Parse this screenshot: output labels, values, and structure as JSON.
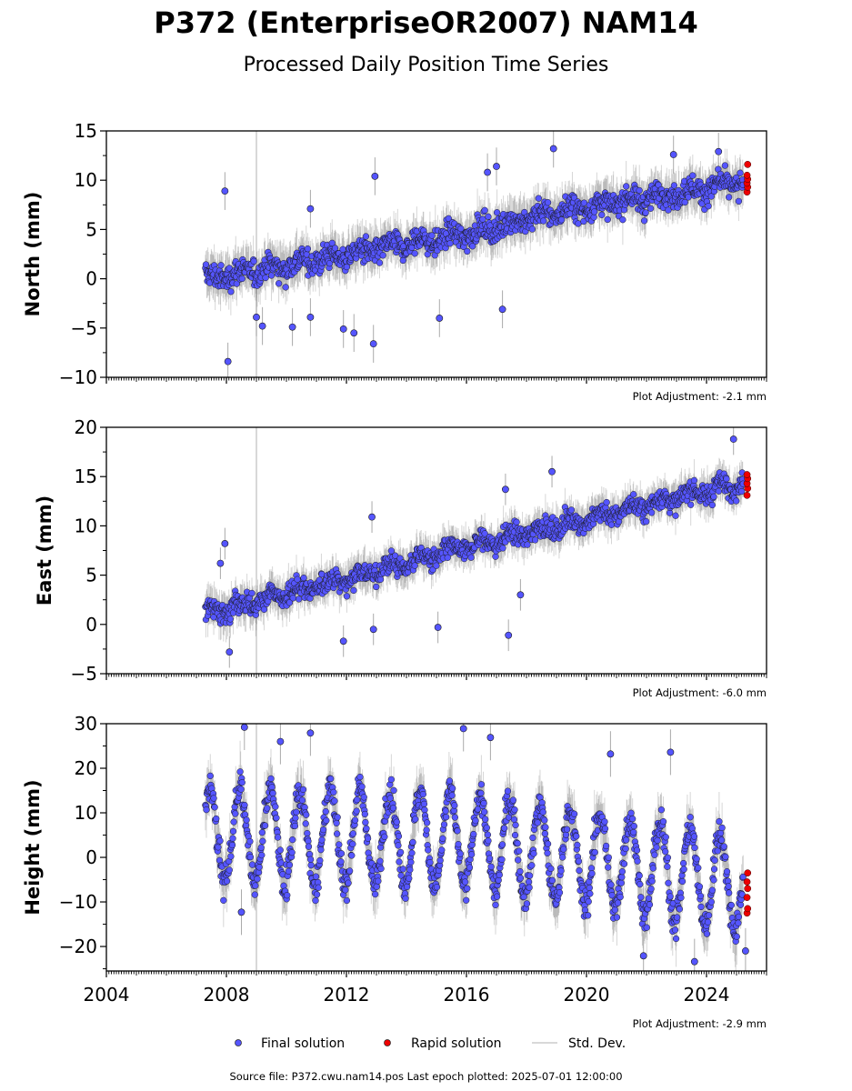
{
  "title": "P372 (EnterpriseOR2007) NAM14",
  "subtitle": "Processed Daily Position Time Series",
  "legend": {
    "final": "Final solution",
    "rapid": "Rapid solution",
    "stddev": "Std. Dev."
  },
  "source": "Source file: P372.cwu.nam14.pos  Last epoch plotted: 2025-07-01 12:00:00",
  "colors": {
    "final": "#5555ff",
    "rapid": "#ee0000",
    "stddev": "#999999"
  },
  "chart_data": [
    {
      "type": "scatter",
      "ylabel": "North (mm)",
      "adjustment": "Plot Adjustment: -2.1 mm",
      "ylim": [
        -10,
        15
      ],
      "yticks": [
        -10,
        -5,
        0,
        5,
        10,
        15
      ],
      "yticklabels": [
        "−10",
        "−5",
        "0",
        "5",
        "10",
        "15"
      ],
      "xlim": [
        2004.0,
        2026.0
      ],
      "trend": {
        "x": [
          2007.3,
          2016.0,
          2018.5,
          2025.3
        ],
        "y": [
          0.0,
          4.5,
          6.5,
          9.8
        ]
      },
      "seasonal_amp": 0.4,
      "noise_sd": 1.2,
      "rapid_y": [
        8.8,
        9.3,
        9.7,
        10.1,
        10.5,
        11.6
      ],
      "outliers": [
        {
          "x": 2007.95,
          "y": 8.9
        },
        {
          "x": 2008.05,
          "y": -8.4
        },
        {
          "x": 2009.0,
          "y": -3.9
        },
        {
          "x": 2009.2,
          "y": -4.8
        },
        {
          "x": 2010.2,
          "y": -4.9
        },
        {
          "x": 2010.8,
          "y": 7.1
        },
        {
          "x": 2010.8,
          "y": -3.9
        },
        {
          "x": 2011.9,
          "y": -5.1
        },
        {
          "x": 2012.25,
          "y": -5.5
        },
        {
          "x": 2012.9,
          "y": -6.6
        },
        {
          "x": 2012.95,
          "y": 10.4
        },
        {
          "x": 2015.1,
          "y": -4.0
        },
        {
          "x": 2016.7,
          "y": 10.8
        },
        {
          "x": 2017.2,
          "y": -3.1
        },
        {
          "x": 2017.0,
          "y": 11.4
        },
        {
          "x": 2018.9,
          "y": 13.2
        },
        {
          "x": 2022.9,
          "y": 12.6
        },
        {
          "x": 2024.4,
          "y": 12.9
        }
      ]
    },
    {
      "type": "scatter",
      "ylabel": "East (mm)",
      "adjustment": "Plot Adjustment: -6.0 mm",
      "ylim": [
        -5,
        20
      ],
      "yticks": [
        -5,
        0,
        5,
        10,
        15,
        20
      ],
      "yticklabels": [
        "−5",
        "0",
        "5",
        "10",
        "15",
        "20"
      ],
      "xlim": [
        2004.0,
        2026.0
      ],
      "trend": {
        "x": [
          2007.3,
          2016.0,
          2025.3
        ],
        "y": [
          1.0,
          7.8,
          14.5
        ]
      },
      "seasonal_amp": 0.5,
      "noise_sd": 1.0,
      "rapid_y": [
        13.1,
        13.8,
        14.3,
        14.8,
        15.2
      ],
      "outliers": [
        {
          "x": 2007.8,
          "y": 6.2
        },
        {
          "x": 2007.95,
          "y": 8.2
        },
        {
          "x": 2008.1,
          "y": -2.8
        },
        {
          "x": 2011.9,
          "y": -1.7
        },
        {
          "x": 2012.85,
          "y": 10.9
        },
        {
          "x": 2012.9,
          "y": -0.5
        },
        {
          "x": 2015.05,
          "y": -0.3
        },
        {
          "x": 2017.3,
          "y": 13.7
        },
        {
          "x": 2017.4,
          "y": -1.1
        },
        {
          "x": 2017.8,
          "y": 3.0
        },
        {
          "x": 2018.85,
          "y": 15.5
        },
        {
          "x": 2024.9,
          "y": 18.8
        }
      ]
    },
    {
      "type": "scatter",
      "ylabel": "Height (mm)",
      "adjustment": "Plot Adjustment: -2.9 mm",
      "ylim": [
        -25.5,
        30
      ],
      "yticks": [
        -20,
        -10,
        0,
        10,
        20,
        30
      ],
      "yticklabels": [
        "−20",
        "−10",
        "0",
        "10",
        "20",
        "30"
      ],
      "xlim": [
        2004.0,
        2026.0
      ],
      "xticks": [
        2004,
        2008,
        2012,
        2016,
        2020,
        2024
      ],
      "xticklabels": [
        "2004",
        "2008",
        "2012",
        "2016",
        "2020",
        "2024"
      ],
      "trend": {
        "x": [
          2007.3,
          2016.0,
          2025.3
        ],
        "y": [
          5.0,
          4.0,
          -6.0
        ]
      },
      "seasonal_amp": 10.5,
      "noise_sd": 3.2,
      "rapid_y": [
        -12.5,
        -11.5,
        -9.0,
        -7.0,
        -5.5,
        -3.5
      ],
      "outliers": [
        {
          "x": 2008.6,
          "y": 29.2
        },
        {
          "x": 2009.8,
          "y": 26.0
        },
        {
          "x": 2010.8,
          "y": 27.9
        },
        {
          "x": 2015.9,
          "y": 28.9
        },
        {
          "x": 2016.8,
          "y": 26.9
        },
        {
          "x": 2020.8,
          "y": 23.2
        },
        {
          "x": 2022.8,
          "y": 23.6
        },
        {
          "x": 2008.5,
          "y": -12.3
        },
        {
          "x": 2023.6,
          "y": -23.4
        },
        {
          "x": 2021.9,
          "y": -22.1
        },
        {
          "x": 2025.3,
          "y": -21.0
        }
      ]
    }
  ]
}
